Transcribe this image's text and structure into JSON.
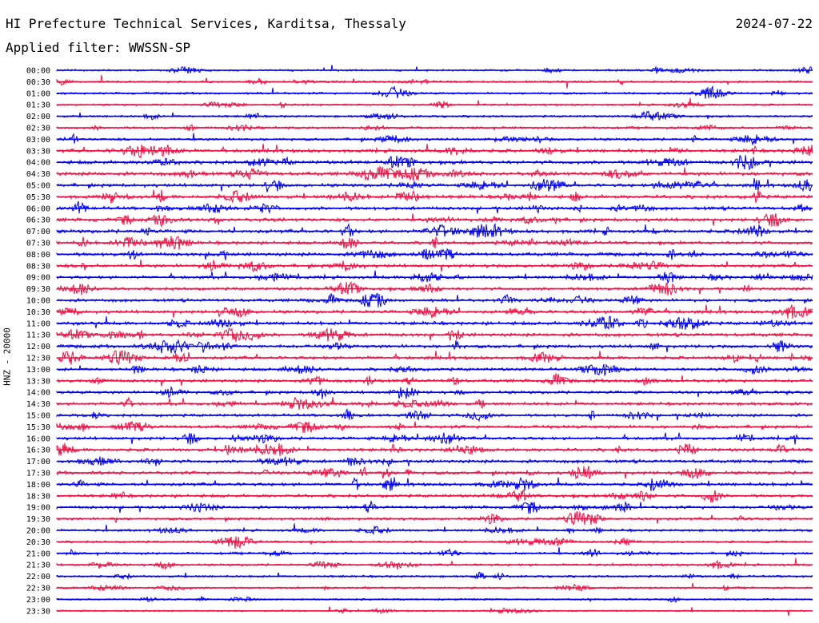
{
  "header": {
    "title": "HI Prefecture Technical Services, Karditsa, Thessaly",
    "date": "2024-07-22",
    "filter": "Applied filter: WWSSN-SP"
  },
  "chart_data": {
    "type": "line",
    "title": "HI Prefecture Technical Services, Karditsa, Thessaly",
    "subtitle": "Applied filter: WWSSN-SP",
    "ylabel": "HNZ - 20000",
    "xlabel": "",
    "tick_labels": [
      "00:00",
      "00:30",
      "01:00",
      "01:30",
      "02:00",
      "02:30",
      "03:00",
      "03:30",
      "04:00",
      "04:30",
      "05:00",
      "05:30",
      "06:00",
      "06:30",
      "07:00",
      "07:30",
      "08:00",
      "08:30",
      "09:00",
      "09:30",
      "10:00",
      "10:30",
      "11:00",
      "11:30",
      "12:00",
      "12:30",
      "13:00",
      "13:30",
      "14:00",
      "14:30",
      "15:00",
      "15:30",
      "16:00",
      "16:30",
      "17:00",
      "17:30",
      "18:00",
      "18:30",
      "19:00",
      "19:30",
      "20:00",
      "20:30",
      "21:00",
      "21:30",
      "22:00",
      "22:30",
      "23:00",
      "23:30"
    ],
    "trace_colors": [
      "#0000ee",
      "#ee1144"
    ],
    "activity_level": [
      0.3,
      0.35,
      0.35,
      0.3,
      0.35,
      0.45,
      0.5,
      0.75,
      0.8,
      0.8,
      0.75,
      0.8,
      0.75,
      0.75,
      0.8,
      0.7,
      0.75,
      0.7,
      0.65,
      0.6,
      0.65,
      0.7,
      0.75,
      0.75,
      0.7,
      0.7,
      0.65,
      0.65,
      0.6,
      0.6,
      0.6,
      0.65,
      0.65,
      0.7,
      0.7,
      0.7,
      0.7,
      0.65,
      0.6,
      0.5,
      0.45,
      0.4,
      0.45,
      0.4,
      0.35,
      0.3,
      0.25,
      0.2
    ],
    "grid": false
  }
}
